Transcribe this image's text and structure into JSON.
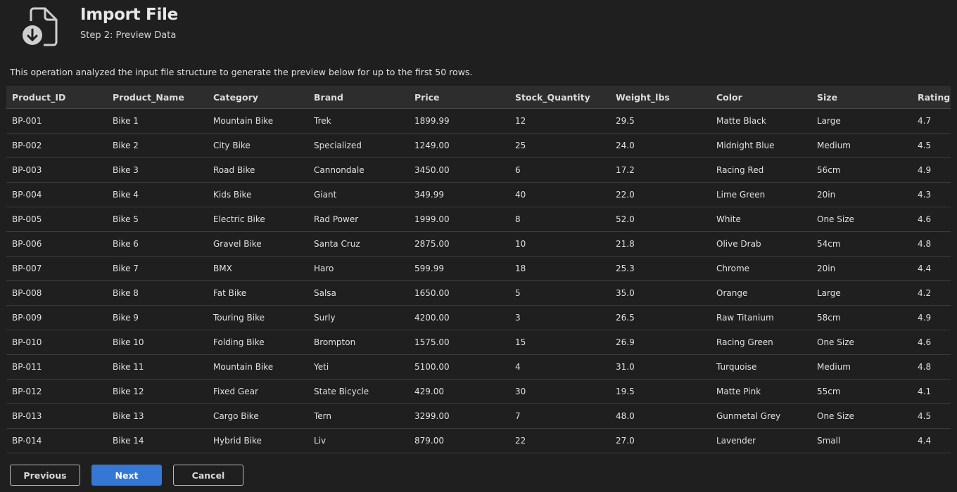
{
  "header": {
    "title": "Import File",
    "subtitle": "Step 2: Preview Data",
    "icon": "file-import-icon"
  },
  "description": "This operation analyzed the input file structure to generate the preview below for up to the first 50 rows.",
  "table": {
    "columns": [
      "Product_ID",
      "Product_Name",
      "Category",
      "Brand",
      "Price",
      "Stock_Quantity",
      "Weight_lbs",
      "Color",
      "Size",
      "Rating"
    ],
    "rows": [
      [
        "BP-001",
        "Bike 1",
        "Mountain Bike",
        "Trek",
        "1899.99",
        "12",
        "29.5",
        "Matte Black",
        "Large",
        "4.7"
      ],
      [
        "BP-002",
        "Bike 2",
        "City Bike",
        "Specialized",
        "1249.00",
        "25",
        "24.0",
        "Midnight Blue",
        "Medium",
        "4.5"
      ],
      [
        "BP-003",
        "Bike 3",
        "Road Bike",
        "Cannondale",
        "3450.00",
        "6",
        "17.2",
        "Racing Red",
        "56cm",
        "4.9"
      ],
      [
        "BP-004",
        "Bike 4",
        "Kids Bike",
        "Giant",
        "349.99",
        "40",
        "22.0",
        "Lime Green",
        "20in",
        "4.3"
      ],
      [
        "BP-005",
        "Bike 5",
        "Electric Bike",
        "Rad Power",
        "1999.00",
        "8",
        "52.0",
        "White",
        "One Size",
        "4.6"
      ],
      [
        "BP-006",
        "Bike 6",
        "Gravel Bike",
        "Santa Cruz",
        "2875.00",
        "10",
        "21.8",
        "Olive Drab",
        "54cm",
        "4.8"
      ],
      [
        "BP-007",
        "Bike 7",
        "BMX",
        "Haro",
        "599.99",
        "18",
        "25.3",
        "Chrome",
        "20in",
        "4.4"
      ],
      [
        "BP-008",
        "Bike 8",
        "Fat Bike",
        "Salsa",
        "1650.00",
        "5",
        "35.0",
        "Orange",
        "Large",
        "4.2"
      ],
      [
        "BP-009",
        "Bike 9",
        "Touring Bike",
        "Surly",
        "4200.00",
        "3",
        "26.5",
        "Raw Titanium",
        "58cm",
        "4.9"
      ],
      [
        "BP-010",
        "Bike 10",
        "Folding Bike",
        "Brompton",
        "1575.00",
        "15",
        "26.9",
        "Racing Green",
        "One Size",
        "4.6"
      ],
      [
        "BP-011",
        "Bike 11",
        "Mountain Bike",
        "Yeti",
        "5100.00",
        "4",
        "31.0",
        "Turquoise",
        "Medium",
        "4.8"
      ],
      [
        "BP-012",
        "Bike 12",
        "Fixed Gear",
        "State Bicycle",
        "429.00",
        "30",
        "19.5",
        "Matte Pink",
        "55cm",
        "4.1"
      ],
      [
        "BP-013",
        "Bike 13",
        "Cargo Bike",
        "Tern",
        "3299.00",
        "7",
        "48.0",
        "Gunmetal Grey",
        "One Size",
        "4.5"
      ],
      [
        "BP-014",
        "Bike 14",
        "Hybrid Bike",
        "Liv",
        "879.00",
        "22",
        "27.0",
        "Lavender",
        "Small",
        "4.4"
      ]
    ]
  },
  "buttons": {
    "previous": "Previous",
    "next": "Next",
    "cancel": "Cancel"
  },
  "colors": {
    "background": "#1f1f1f",
    "header_row": "#2d2d2d",
    "primary": "#3477d4"
  }
}
